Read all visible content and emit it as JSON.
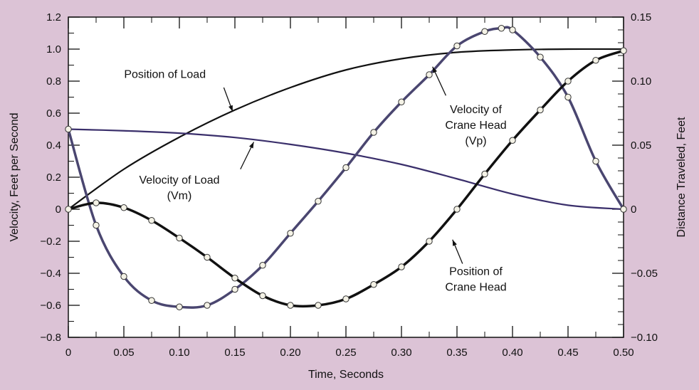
{
  "chart_data": {
    "type": "line",
    "title": "",
    "xlabel": "Time, Seconds",
    "ylabel": "Velocity, Feet per Second",
    "ylabel_right": "Distance Traveled, Feet",
    "xlim": [
      0,
      0.5
    ],
    "ylim": [
      -0.8,
      1.2
    ],
    "ylim_right": [
      -0.1,
      0.15
    ],
    "x_ticks": [
      0,
      0.05,
      0.1,
      0.15,
      0.2,
      0.25,
      0.3,
      0.35,
      0.4,
      0.45,
      0.5
    ],
    "x_tick_labels": [
      "0",
      "0.05",
      "0.10",
      "0.15",
      "0.20",
      "0.25",
      "0.30",
      "0.35",
      "0.40",
      "0.45",
      "0.50"
    ],
    "y_ticks": [
      -0.8,
      -0.6,
      -0.4,
      -0.2,
      0,
      0.2,
      0.4,
      0.6,
      0.8,
      1.0,
      1.2
    ],
    "y_tick_labels": [
      "−0.8",
      "−0.6",
      "−0.4",
      "−0.2",
      "0",
      "0.2",
      "0.4",
      "0.6",
      "0.8",
      "1.0",
      "1.2"
    ],
    "y_right_ticks": [
      -0.1,
      -0.05,
      0,
      0.05,
      0.1,
      0.15
    ],
    "y_right_tick_labels": [
      "−0.10",
      "−0.05",
      "0",
      "0.05",
      "0.10",
      "0.15"
    ],
    "grid": false,
    "legend": "none",
    "series": [
      {
        "axis": "left",
        "color": "#111111",
        "style": "solid",
        "x": [
          0,
          0.05,
          0.1,
          0.15,
          0.2,
          0.25,
          0.3,
          0.35,
          0.4,
          0.45,
          0.5
        ],
        "y": [
          0,
          0.25,
          0.45,
          0.62,
          0.76,
          0.87,
          0.94,
          0.98,
          0.995,
          1.0,
          1.0
        ]
      },
      {
        "axis": "left",
        "color": "#3a2f6b",
        "style": "solid",
        "x": [
          0,
          0.05,
          0.1,
          0.15,
          0.2,
          0.25,
          0.3,
          0.35,
          0.4,
          0.45,
          0.5
        ],
        "y": [
          0.5,
          0.49,
          0.475,
          0.448,
          0.405,
          0.35,
          0.28,
          0.19,
          0.095,
          0.025,
          0
        ]
      },
      {
        "axis": "left",
        "color": "#4a4670",
        "style": "markers",
        "x": [
          0,
          0.025,
          0.05,
          0.075,
          0.1,
          0.125,
          0.15,
          0.175,
          0.2,
          0.225,
          0.25,
          0.275,
          0.3,
          0.325,
          0.35,
          0.375,
          0.39,
          0.4,
          0.425,
          0.45,
          0.475,
          0.5
        ],
        "y": [
          0.5,
          -0.1,
          -0.42,
          -0.57,
          -0.61,
          -0.6,
          -0.5,
          -0.35,
          -0.15,
          0.05,
          0.26,
          0.48,
          0.67,
          0.84,
          1.02,
          1.11,
          1.13,
          1.12,
          0.95,
          0.7,
          0.3,
          0
        ]
      },
      {
        "axis": "left",
        "color": "#111111",
        "style": "markers",
        "x": [
          0,
          0.025,
          0.05,
          0.075,
          0.1,
          0.125,
          0.15,
          0.175,
          0.2,
          0.225,
          0.25,
          0.275,
          0.3,
          0.325,
          0.35,
          0.375,
          0.4,
          0.425,
          0.45,
          0.475,
          0.5
        ],
        "y": [
          0,
          0.04,
          0.01,
          -0.07,
          -0.18,
          -0.3,
          -0.43,
          -0.54,
          -0.6,
          -0.6,
          -0.56,
          -0.47,
          -0.36,
          -0.2,
          0.0,
          0.22,
          0.43,
          0.62,
          0.8,
          0.93,
          0.99
        ]
      }
    ],
    "annotations": [
      {
        "lines": [
          "Position of Load"
        ],
        "x": 0.087,
        "y": 0.82,
        "arrow_from": [
          0.14,
          0.76
        ],
        "arrow_to": [
          0.148,
          0.61
        ]
      },
      {
        "lines": [
          "Velocity of Load",
          "(Vm)"
        ],
        "x": 0.1,
        "y": 0.16,
        "arrow_from": [
          0.155,
          0.25
        ],
        "arrow_to": [
          0.167,
          0.42
        ]
      },
      {
        "lines": [
          "Velocity of",
          "Crane Head",
          "(Vp)"
        ],
        "x": 0.367,
        "y": 0.6,
        "arrow_from": [
          0.34,
          0.71
        ],
        "arrow_to": [
          0.328,
          0.89
        ]
      },
      {
        "lines": [
          "Position of",
          "Crane Head"
        ],
        "x": 0.367,
        "y": -0.41,
        "arrow_from": [
          0.355,
          -0.34
        ],
        "arrow_to": [
          0.346,
          -0.19
        ]
      }
    ]
  }
}
